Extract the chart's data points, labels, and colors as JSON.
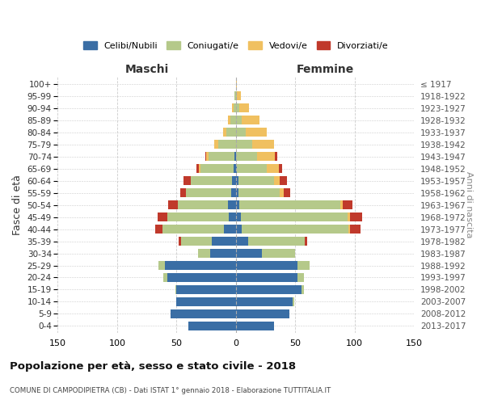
{
  "age_groups": [
    "0-4",
    "5-9",
    "10-14",
    "15-19",
    "20-24",
    "25-29",
    "30-34",
    "35-39",
    "40-44",
    "45-49",
    "50-54",
    "55-59",
    "60-64",
    "65-69",
    "70-74",
    "75-79",
    "80-84",
    "85-89",
    "90-94",
    "95-99",
    "100+"
  ],
  "birth_years": [
    "2013-2017",
    "2008-2012",
    "2003-2007",
    "1998-2002",
    "1993-1997",
    "1988-1992",
    "1983-1987",
    "1978-1982",
    "1973-1977",
    "1968-1972",
    "1963-1967",
    "1958-1962",
    "1953-1957",
    "1948-1952",
    "1943-1947",
    "1938-1942",
    "1933-1937",
    "1928-1932",
    "1923-1927",
    "1918-1922",
    "≤ 1917"
  ],
  "colors": {
    "celibi": "#3a6ea5",
    "coniugati": "#b5c98a",
    "vedovi": "#f0c060",
    "divorziati": "#c0392b"
  },
  "maschi_celibi": [
    40,
    55,
    50,
    50,
    58,
    60,
    22,
    20,
    10,
    6,
    7,
    4,
    3,
    2,
    1,
    0,
    0,
    0,
    0,
    0,
    0
  ],
  "maschi_coniugati": [
    0,
    0,
    0,
    1,
    3,
    5,
    10,
    26,
    52,
    52,
    42,
    38,
    35,
    28,
    22,
    15,
    8,
    5,
    2,
    1,
    0
  ],
  "maschi_vedovi": [
    0,
    0,
    0,
    0,
    0,
    0,
    0,
    0,
    0,
    0,
    0,
    0,
    0,
    1,
    2,
    3,
    3,
    2,
    1,
    0,
    0
  ],
  "maschi_divorziati": [
    0,
    0,
    0,
    0,
    0,
    0,
    0,
    2,
    6,
    8,
    8,
    5,
    6,
    2,
    1,
    0,
    0,
    0,
    0,
    0,
    0
  ],
  "femmine_nubili": [
    32,
    45,
    48,
    55,
    52,
    52,
    22,
    10,
    5,
    4,
    3,
    2,
    2,
    1,
    0,
    0,
    0,
    0,
    0,
    0,
    0
  ],
  "femmine_coniugate": [
    0,
    0,
    1,
    2,
    5,
    10,
    28,
    48,
    90,
    90,
    85,
    35,
    30,
    25,
    18,
    14,
    8,
    5,
    3,
    1,
    0
  ],
  "femmine_vedove": [
    0,
    0,
    0,
    0,
    0,
    0,
    0,
    0,
    1,
    2,
    2,
    3,
    5,
    10,
    15,
    18,
    18,
    15,
    8,
    3,
    1
  ],
  "femmine_divorziate": [
    0,
    0,
    0,
    0,
    0,
    0,
    0,
    2,
    9,
    10,
    8,
    6,
    6,
    3,
    2,
    0,
    0,
    0,
    0,
    0,
    0
  ],
  "xlim": 150,
  "xticks": [
    -150,
    -100,
    -50,
    0,
    50,
    100,
    150
  ],
  "xtick_labels": [
    "150",
    "100",
    "50",
    "0",
    "50",
    "100",
    "150"
  ],
  "title": "Popolazione per età, sesso e stato civile - 2018",
  "subtitle": "COMUNE DI CAMPODIPIETRA (CB) - Dati ISTAT 1° gennaio 2018 - Elaborazione TUTTITALIA.IT",
  "ylabel_left": "Fasce di età",
  "ylabel_right": "Anni di nascita",
  "label_maschi": "Maschi",
  "label_femmine": "Femmine",
  "legend_labels": [
    "Celibi/Nubili",
    "Coniugati/e",
    "Vedovi/e",
    "Divorziati/e"
  ],
  "bar_height": 0.75
}
